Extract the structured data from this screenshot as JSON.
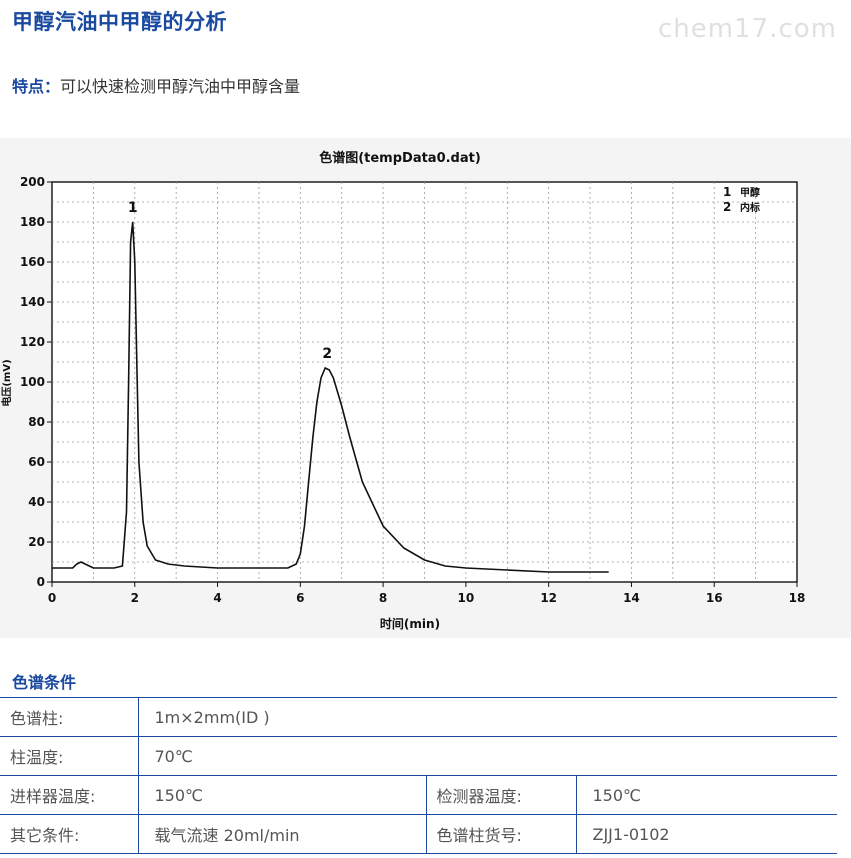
{
  "title": "甲醇汽油中甲醇的分析",
  "watermark": "chem17.com",
  "feature": {
    "label": "特点：",
    "text": "可以快速检测甲醇汽油中甲醇含量"
  },
  "chart_data": {
    "type": "line",
    "title": "色谱图(tempData0.dat)",
    "xlabel": "时间(min)",
    "ylabel": "电压(mV)",
    "xlim": [
      0,
      18
    ],
    "ylim": [
      0,
      200
    ],
    "x_ticks": [
      0,
      2,
      4,
      6,
      8,
      10,
      12,
      14,
      16,
      18
    ],
    "y_ticks": [
      0,
      20,
      40,
      60,
      80,
      100,
      120,
      140,
      160,
      180,
      200
    ],
    "grid": true,
    "legend": [
      {
        "num": "1",
        "name": "甲醇"
      },
      {
        "num": "2",
        "name": "内标"
      }
    ],
    "legend_position": "top-right",
    "peak_labels": [
      {
        "label": "1",
        "x": 1.95,
        "y": 185
      },
      {
        "label": "2",
        "x": 6.65,
        "y": 112
      }
    ],
    "series": [
      {
        "x": [
          0,
          0.5,
          0.6,
          0.7,
          0.8,
          0.9,
          1.0,
          1.2,
          1.5,
          1.7,
          1.8,
          1.85,
          1.9,
          1.95,
          2.0,
          2.05,
          2.1,
          2.2,
          2.3,
          2.5,
          2.8,
          3.2,
          4.0,
          5.0,
          5.7,
          5.9,
          6.0,
          6.1,
          6.2,
          6.3,
          6.4,
          6.5,
          6.6,
          6.7,
          6.8,
          7.0,
          7.2,
          7.5,
          8.0,
          8.5,
          9.0,
          9.5,
          10.0,
          11.0,
          12.0,
          13.45
        ],
        "y": [
          7,
          7,
          9,
          10,
          9,
          8,
          7,
          7,
          7,
          8,
          35,
          100,
          170,
          180,
          160,
          110,
          60,
          30,
          18,
          11,
          9,
          8,
          7,
          7,
          7,
          9,
          14,
          28,
          50,
          72,
          90,
          102,
          107,
          106,
          102,
          88,
          72,
          50,
          28,
          17,
          11,
          8,
          7,
          6,
          5,
          5
        ]
      }
    ]
  },
  "conditions": {
    "title": "色谱条件",
    "column_label": "色谱柱:",
    "column_value": "1m×2mm(ID )",
    "col_temp_label": "柱温度:",
    "col_temp_value": "70℃",
    "injector_temp_label": "进样器温度:",
    "injector_temp_value": "150℃",
    "detector_temp_label": "检测器温度:",
    "detector_temp_value": "150℃",
    "other_label": "其它条件:",
    "other_value": "载气流速 20ml/min",
    "column_no_label": "色谱柱货号:",
    "column_no_value": "ZJJ1-0102"
  }
}
